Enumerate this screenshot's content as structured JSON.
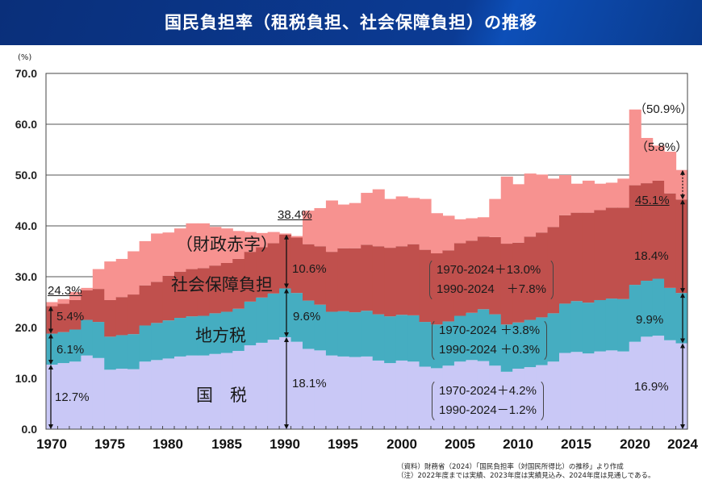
{
  "header": {
    "title": "国民負担率（租税負担、社会保障負担）の推移"
  },
  "chart_data": {
    "type": "area",
    "title": "国民負担率（租税負担、社会保障負担）の推移",
    "ylabel": "(%)",
    "ylim": [
      0,
      70
    ],
    "yticks": [
      "0.0",
      "10.0",
      "20.0",
      "30.0",
      "40.0",
      "50.0",
      "60.0",
      "70.0"
    ],
    "xticks": [
      "1970",
      "1975",
      "1980",
      "1985",
      "1990",
      "1995",
      "2000",
      "2005",
      "2010",
      "2015",
      "2020",
      "2024"
    ],
    "grid": true,
    "x": [
      1970,
      1971,
      1972,
      1973,
      1974,
      1975,
      1976,
      1977,
      1978,
      1979,
      1980,
      1981,
      1982,
      1983,
      1984,
      1985,
      1986,
      1987,
      1988,
      1989,
      1990,
      1991,
      1992,
      1993,
      1994,
      1995,
      1996,
      1997,
      1998,
      1999,
      2000,
      2001,
      2002,
      2003,
      2004,
      2005,
      2006,
      2007,
      2008,
      2009,
      2010,
      2011,
      2012,
      2013,
      2014,
      2015,
      2016,
      2017,
      2018,
      2019,
      2020,
      2021,
      2022,
      2023,
      2024
    ],
    "series": [
      {
        "name": "国　税",
        "color": "#c9c8f6",
        "values": [
          12.7,
          13.0,
          13.3,
          14.5,
          14.0,
          11.7,
          11.9,
          11.8,
          13.3,
          13.6,
          13.9,
          14.3,
          14.5,
          14.5,
          14.8,
          15.0,
          15.4,
          16.5,
          17.0,
          17.6,
          18.1,
          17.2,
          15.8,
          15.5,
          14.5,
          14.3,
          14.2,
          14.3,
          13.5,
          13.0,
          13.5,
          13.3,
          12.3,
          12.0,
          12.5,
          13.3,
          13.6,
          13.4,
          12.5,
          11.3,
          11.9,
          12.2,
          12.6,
          13.3,
          15.0,
          15.2,
          14.9,
          15.3,
          15.5,
          15.3,
          17.2,
          18.2,
          18.4,
          17.5,
          16.9
        ]
      },
      {
        "name": "地方税",
        "color": "#45adc1",
        "values": [
          6.1,
          6.1,
          6.3,
          7.0,
          7.1,
          6.5,
          6.6,
          6.9,
          7.1,
          7.3,
          7.5,
          7.6,
          7.7,
          7.8,
          8.0,
          8.1,
          8.3,
          8.6,
          8.9,
          9.1,
          9.6,
          9.6,
          9.5,
          9.0,
          8.6,
          8.9,
          8.8,
          9.0,
          9.1,
          9.2,
          9.0,
          9.1,
          8.8,
          8.6,
          8.7,
          9.0,
          9.3,
          10.2,
          10.1,
          9.3,
          9.1,
          9.3,
          9.4,
          9.5,
          9.7,
          10.0,
          10.0,
          10.1,
          10.2,
          10.3,
          11.2,
          11.0,
          11.2,
          10.3,
          9.9
        ]
      },
      {
        "name": "社会保障負担",
        "color": "#c0504d",
        "values": [
          5.4,
          5.6,
          5.8,
          5.8,
          6.5,
          7.2,
          7.5,
          7.8,
          7.9,
          8.1,
          8.8,
          9.1,
          9.3,
          9.4,
          9.4,
          9.6,
          9.8,
          9.8,
          9.9,
          9.9,
          10.6,
          10.9,
          11.1,
          11.5,
          11.8,
          12.4,
          12.6,
          13.0,
          13.4,
          13.5,
          13.5,
          14.0,
          14.2,
          14.0,
          14.0,
          14.3,
          14.2,
          14.3,
          15.2,
          15.9,
          15.7,
          16.4,
          16.7,
          17.0,
          17.4,
          17.4,
          17.7,
          17.7,
          17.9,
          18.0,
          19.6,
          19.2,
          19.3,
          18.6,
          18.4
        ]
      },
      {
        "name": "（財政赤字）",
        "color": "#f79290",
        "values": [
          0.8,
          0.9,
          1.6,
          0.5,
          3.9,
          7.6,
          7.5,
          8.5,
          8.7,
          9.5,
          8.5,
          8.5,
          9.0,
          8.8,
          7.6,
          6.8,
          5.5,
          3.9,
          2.8,
          2.2,
          0.2,
          0.3,
          6.6,
          7.5,
          10.1,
          8.6,
          8.9,
          10.2,
          11.2,
          9.6,
          9.8,
          9.1,
          10.0,
          7.9,
          6.8,
          4.7,
          4.4,
          3.8,
          7.5,
          13.2,
          11.5,
          12.4,
          11.4,
          9.5,
          7.9,
          5.7,
          6.3,
          5.2,
          4.9,
          5.7,
          14.9,
          8.9,
          6.9,
          8.2,
          5.8
        ]
      }
    ],
    "annotations": {
      "y1970_total": "24.3%",
      "y1970_ss": "5.4%",
      "y1970_local": "6.1%",
      "y1970_national": "12.7%",
      "y1990_total": "38.4%",
      "y1990_ss": "10.6%",
      "y1990_local": "9.6%",
      "y1990_national": "18.1%",
      "y2024_total_with_deficit": "（50.9%）",
      "y2024_deficit": "（5.8%）",
      "y2024_total": "45.1%",
      "y2024_ss": "18.4%",
      "y2024_local": "9.9%",
      "y2024_national": "16.9%",
      "ss_change": [
        "1970-2024＋13.0%",
        "1990-2024　＋7.8%"
      ],
      "local_change": [
        "1970-2024 ＋3.8%",
        "1990-2024 ＋0.3%"
      ],
      "national_change": [
        "1970-2024＋4.2%",
        "1990-2024－1.2%"
      ]
    }
  },
  "footnotes": [
    "（資料）財務省（2024）「国民負担率（対国民所得比）の推移」より作成",
    "（注）2022年度までは実績、2023年度は実績見込み、2024年度は見通しである。"
  ]
}
